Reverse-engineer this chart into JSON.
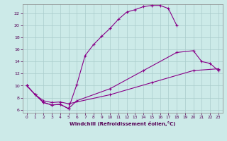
{
  "xlabel": "Windchill (Refroidissement éolien,°C)",
  "background_color": "#cceae8",
  "grid_color": "#aacccc",
  "line_color": "#880088",
  "xlim": [
    -0.5,
    23.5
  ],
  "ylim": [
    5.5,
    23.5
  ],
  "xticks": [
    0,
    1,
    2,
    3,
    4,
    5,
    6,
    7,
    8,
    9,
    10,
    11,
    12,
    13,
    14,
    15,
    16,
    17,
    18,
    19,
    20,
    21,
    22,
    23
  ],
  "yticks": [
    6,
    8,
    10,
    12,
    14,
    16,
    18,
    20,
    22
  ],
  "curve1_x": [
    0,
    1,
    2,
    3,
    4,
    5,
    6,
    7,
    8,
    9,
    10,
    11,
    12,
    13,
    14,
    15,
    16,
    17,
    18
  ],
  "curve1_y": [
    10.0,
    8.5,
    7.2,
    6.8,
    6.9,
    6.2,
    10.2,
    15.0,
    16.8,
    18.2,
    19.5,
    21.0,
    22.2,
    22.6,
    23.1,
    23.3,
    23.3,
    22.8,
    20.0
  ],
  "curve2_x": [
    0,
    1,
    2,
    3,
    4,
    5,
    6,
    10,
    14,
    18,
    20,
    21,
    22,
    23
  ],
  "curve2_y": [
    10.0,
    8.5,
    7.2,
    6.8,
    6.9,
    6.2,
    7.5,
    9.5,
    12.5,
    15.5,
    15.8,
    14.0,
    13.7,
    12.5
  ],
  "curve3_x": [
    0,
    1,
    2,
    3,
    4,
    5,
    10,
    15,
    20,
    23
  ],
  "curve3_y": [
    10.0,
    8.5,
    7.5,
    7.2,
    7.3,
    7.0,
    8.5,
    10.5,
    12.5,
    12.8
  ]
}
